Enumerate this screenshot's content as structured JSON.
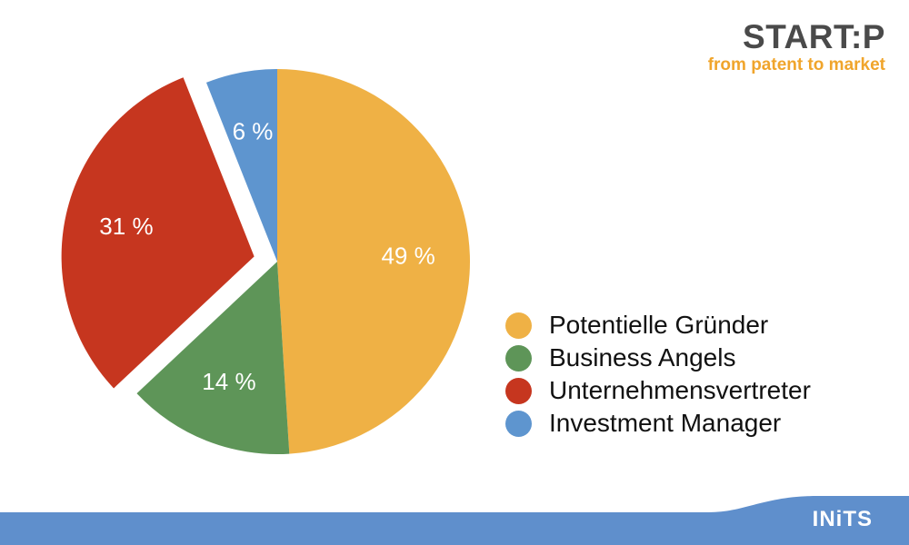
{
  "colors": {
    "gold": "#efb145",
    "green": "#5e9558",
    "red": "#c6361f",
    "blue": "#5e95cf",
    "footer": "#5f8fcc",
    "logo_gray": "#4a4a4a",
    "logo_orange": "#f0a52c"
  },
  "logo": {
    "main": "START:P",
    "sub": "from patent to market",
    "icon": "lightbulb-icon"
  },
  "footer": {
    "brand": "INiTS"
  },
  "chart_data": {
    "type": "pie",
    "start_angle_deg": 0,
    "direction": "clockwise",
    "exploded": [
      "Unternehmensvertreter"
    ],
    "legend_position": "right",
    "series": [
      {
        "name": "Potentielle Gründer",
        "value": 49,
        "label": "49 %",
        "color": "#efb145"
      },
      {
        "name": "Business Angels",
        "value": 14,
        "label": "14 %",
        "color": "#5e9558"
      },
      {
        "name": "Unternehmensvertreter",
        "value": 31,
        "label": "31 %",
        "color": "#c6361f"
      },
      {
        "name": "Investment Manager",
        "value": 6,
        "label": "6 %",
        "color": "#5e95cf"
      }
    ]
  }
}
